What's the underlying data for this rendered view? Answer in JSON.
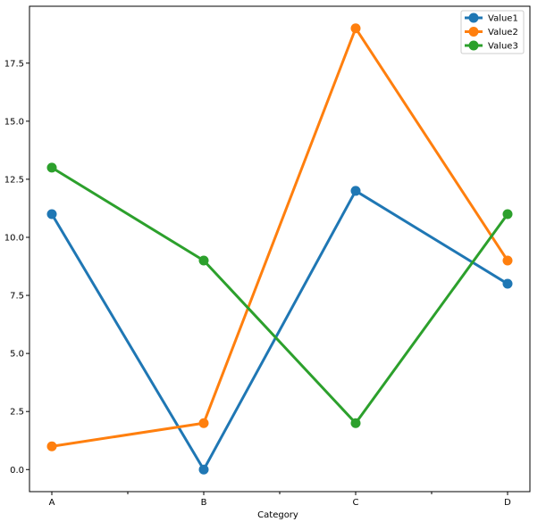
{
  "chart_data": {
    "type": "line",
    "categories": [
      "A",
      "B",
      "C",
      "D"
    ],
    "series": [
      {
        "name": "Value1",
        "color": "#1f77b4",
        "values": [
          11,
          0,
          12,
          8
        ]
      },
      {
        "name": "Value2",
        "color": "#ff7f0e",
        "values": [
          1,
          2,
          19,
          9
        ]
      },
      {
        "name": "Value3",
        "color": "#2ca02c",
        "values": [
          13,
          9,
          2,
          11
        ]
      }
    ],
    "title": "",
    "xlabel": "Category",
    "ylabel": "",
    "ylim": [
      -0.95,
      19.95
    ],
    "yticks": [
      0.0,
      2.5,
      5.0,
      7.5,
      10.0,
      12.5,
      15.0,
      17.5
    ],
    "ytick_labels": [
      "0.0",
      "2.5",
      "5.0",
      "7.5",
      "10.0",
      "12.5",
      "15.0",
      "17.5"
    ],
    "grid": false,
    "legend_position": "top-right",
    "marker": "circle"
  }
}
